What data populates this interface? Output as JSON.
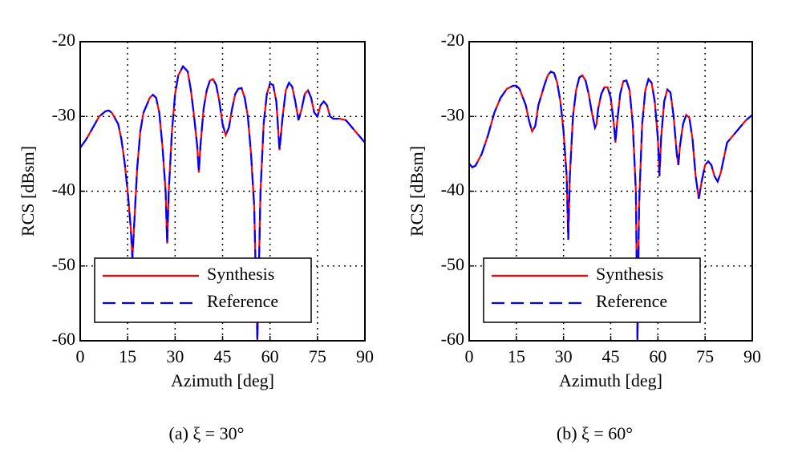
{
  "chart_data": [
    {
      "type": "line",
      "caption": "(a) ξ = 30°",
      "xlabel": "Azimuth [deg]",
      "ylabel": "RCS [dBsm]",
      "xlim": [
        0,
        90
      ],
      "ylim": [
        -60,
        -20
      ],
      "xticks": [
        0,
        15,
        30,
        45,
        60,
        75,
        90
      ],
      "yticks": [
        -60,
        -50,
        -40,
        -30,
        -20
      ],
      "grid": true,
      "legend": "lower center",
      "x": [
        0,
        2,
        4,
        6,
        8,
        9,
        10,
        12,
        13,
        14,
        15,
        16,
        16.5,
        17,
        18,
        19,
        20,
        22,
        23,
        24,
        25,
        26,
        27,
        27.5,
        28,
        29,
        30,
        31,
        32.5,
        34,
        35,
        36,
        37,
        37.5,
        38,
        39,
        40,
        41,
        42,
        43,
        44,
        45,
        46,
        47,
        48,
        49,
        50,
        51,
        52,
        53,
        54,
        55,
        56,
        57,
        58,
        59,
        60,
        61,
        62,
        63,
        64,
        65,
        66,
        67,
        68,
        69,
        70,
        71,
        72,
        73,
        74,
        75,
        76,
        77,
        78,
        79,
        80,
        82,
        84,
        86,
        88,
        90
      ],
      "series": [
        {
          "name": "Synthesis",
          "color": "#ff0000",
          "dash": "none",
          "values": [
            -34.2,
            -33,
            -31.5,
            -30,
            -29.3,
            -29.2,
            -29.5,
            -31,
            -33,
            -36,
            -40,
            -45,
            -49,
            -45,
            -37,
            -32,
            -29.5,
            -27.5,
            -27.1,
            -27.5,
            -29.5,
            -34,
            -40,
            -47,
            -40,
            -32,
            -27,
            -24.5,
            -23.3,
            -24,
            -26.5,
            -30,
            -34,
            -37.5,
            -34,
            -29,
            -26.5,
            -25.2,
            -25,
            -25.8,
            -28,
            -31,
            -32.5,
            -31.5,
            -29,
            -27,
            -26.3,
            -26.2,
            -27.5,
            -30,
            -35,
            -42,
            -60,
            -40,
            -31,
            -27,
            -25.6,
            -25.8,
            -28,
            -34.5,
            -30,
            -26.5,
            -25.5,
            -26,
            -28,
            -30.5,
            -29,
            -27,
            -26.5,
            -27.5,
            -29.5,
            -30,
            -28.5,
            -28,
            -28.5,
            -30,
            -30.3,
            -30.3,
            -30.5,
            -31.5,
            -32.5,
            -33.5
          ]
        },
        {
          "name": "Reference",
          "color": "#0000ff",
          "dash": "16 8",
          "values": [
            -34.2,
            -33,
            -31.5,
            -30,
            -29.3,
            -29.2,
            -29.5,
            -31,
            -33,
            -36,
            -40,
            -45,
            -49,
            -45,
            -37,
            -32,
            -29.5,
            -27.5,
            -27.1,
            -27.5,
            -29.5,
            -34,
            -40,
            -47,
            -40,
            -32,
            -27,
            -24.5,
            -23.3,
            -24,
            -26.5,
            -30,
            -34,
            -37.5,
            -34,
            -29,
            -26.5,
            -25.2,
            -25,
            -25.8,
            -28,
            -31,
            -32.5,
            -31.5,
            -29,
            -27,
            -26.3,
            -26.2,
            -27.5,
            -30,
            -35,
            -42,
            -60,
            -40,
            -31,
            -27,
            -25.6,
            -25.8,
            -28,
            -34.5,
            -30,
            -26.5,
            -25.5,
            -26,
            -28,
            -30.5,
            -29,
            -27,
            -26.5,
            -27.5,
            -29.5,
            -30,
            -28.5,
            -28,
            -28.5,
            -30,
            -30.3,
            -30.3,
            -30.5,
            -31.5,
            -32.5,
            -33.5
          ]
        }
      ]
    },
    {
      "type": "line",
      "caption": "(b) ξ = 60°",
      "xlabel": "Azimuth [deg]",
      "ylabel": "RCS [dBsm]",
      "xlim": [
        0,
        90
      ],
      "ylim": [
        -60,
        -20
      ],
      "xticks": [
        0,
        15,
        30,
        45,
        60,
        75,
        90
      ],
      "yticks": [
        -60,
        -50,
        -40,
        -30,
        -20
      ],
      "grid": true,
      "legend": "lower center",
      "x": [
        0,
        1,
        2,
        4,
        6,
        8,
        10,
        12,
        14,
        15,
        16,
        18,
        19,
        20,
        21,
        22,
        24,
        25,
        26,
        27,
        28,
        29,
        30,
        31,
        31.5,
        32,
        33,
        34,
        35,
        36,
        37,
        38,
        39,
        40,
        40.5,
        41,
        42,
        43,
        44,
        45,
        46,
        46.5,
        47,
        48,
        49,
        50,
        51,
        52,
        53,
        53.5,
        54,
        55,
        56,
        57,
        58,
        59,
        60,
        60.5,
        61,
        62,
        63,
        64,
        65,
        66,
        66.5,
        67,
        68,
        69,
        70,
        71,
        72,
        73,
        74,
        75,
        76,
        77,
        78,
        79,
        80,
        81,
        82,
        84,
        86,
        88,
        90
      ],
      "series": [
        {
          "name": "Synthesis",
          "color": "#ff0000",
          "dash": "none",
          "values": [
            -36.3,
            -36.8,
            -36.6,
            -35,
            -32.5,
            -29.5,
            -27.5,
            -26.3,
            -25.9,
            -25.9,
            -26.3,
            -28.5,
            -30.5,
            -32,
            -31.3,
            -28.5,
            -25.7,
            -24.5,
            -24,
            -24.2,
            -25.5,
            -28,
            -32,
            -38,
            -46.5,
            -38,
            -30,
            -26.5,
            -24.8,
            -24.5,
            -25.2,
            -27,
            -29.5,
            -31.5,
            -31,
            -29,
            -27,
            -26.1,
            -26.1,
            -27.5,
            -31,
            -33.5,
            -31,
            -27,
            -25.3,
            -25.2,
            -26.5,
            -31,
            -40,
            -60,
            -42,
            -31,
            -26.5,
            -25,
            -25.5,
            -28,
            -33,
            -38,
            -33,
            -28,
            -26.4,
            -26.8,
            -30,
            -35,
            -36.5,
            -34,
            -31,
            -29.8,
            -30.2,
            -33,
            -38,
            -41,
            -38.5,
            -36.5,
            -36,
            -36.5,
            -38,
            -38.7,
            -37.5,
            -35.5,
            -33.5,
            -32.5,
            -31.5,
            -30.5,
            -29.8
          ]
        },
        {
          "name": "Reference",
          "color": "#0000ff",
          "dash": "16 8",
          "values": [
            -36.3,
            -36.8,
            -36.6,
            -35,
            -32.5,
            -29.5,
            -27.5,
            -26.3,
            -25.9,
            -25.9,
            -26.3,
            -28.5,
            -30.5,
            -32,
            -31.3,
            -28.5,
            -25.7,
            -24.5,
            -24,
            -24.2,
            -25.5,
            -28,
            -32,
            -38,
            -46.5,
            -38,
            -30,
            -26.5,
            -24.8,
            -24.5,
            -25.2,
            -27,
            -29.5,
            -31.5,
            -31,
            -29,
            -27,
            -26.1,
            -26.1,
            -27.5,
            -31,
            -33.5,
            -31,
            -27,
            -25.3,
            -25.2,
            -26.5,
            -31,
            -40,
            -60,
            -42,
            -31,
            -26.5,
            -25,
            -25.5,
            -28,
            -33,
            -38,
            -33,
            -28,
            -26.4,
            -26.8,
            -30,
            -35,
            -36.5,
            -34,
            -31,
            -29.8,
            -30.2,
            -33,
            -38,
            -41,
            -38.5,
            -36.5,
            -36,
            -36.5,
            -38,
            -38.7,
            -37.5,
            -35.5,
            -33.5,
            -32.5,
            -31.5,
            -30.5,
            -29.8
          ]
        }
      ]
    }
  ]
}
